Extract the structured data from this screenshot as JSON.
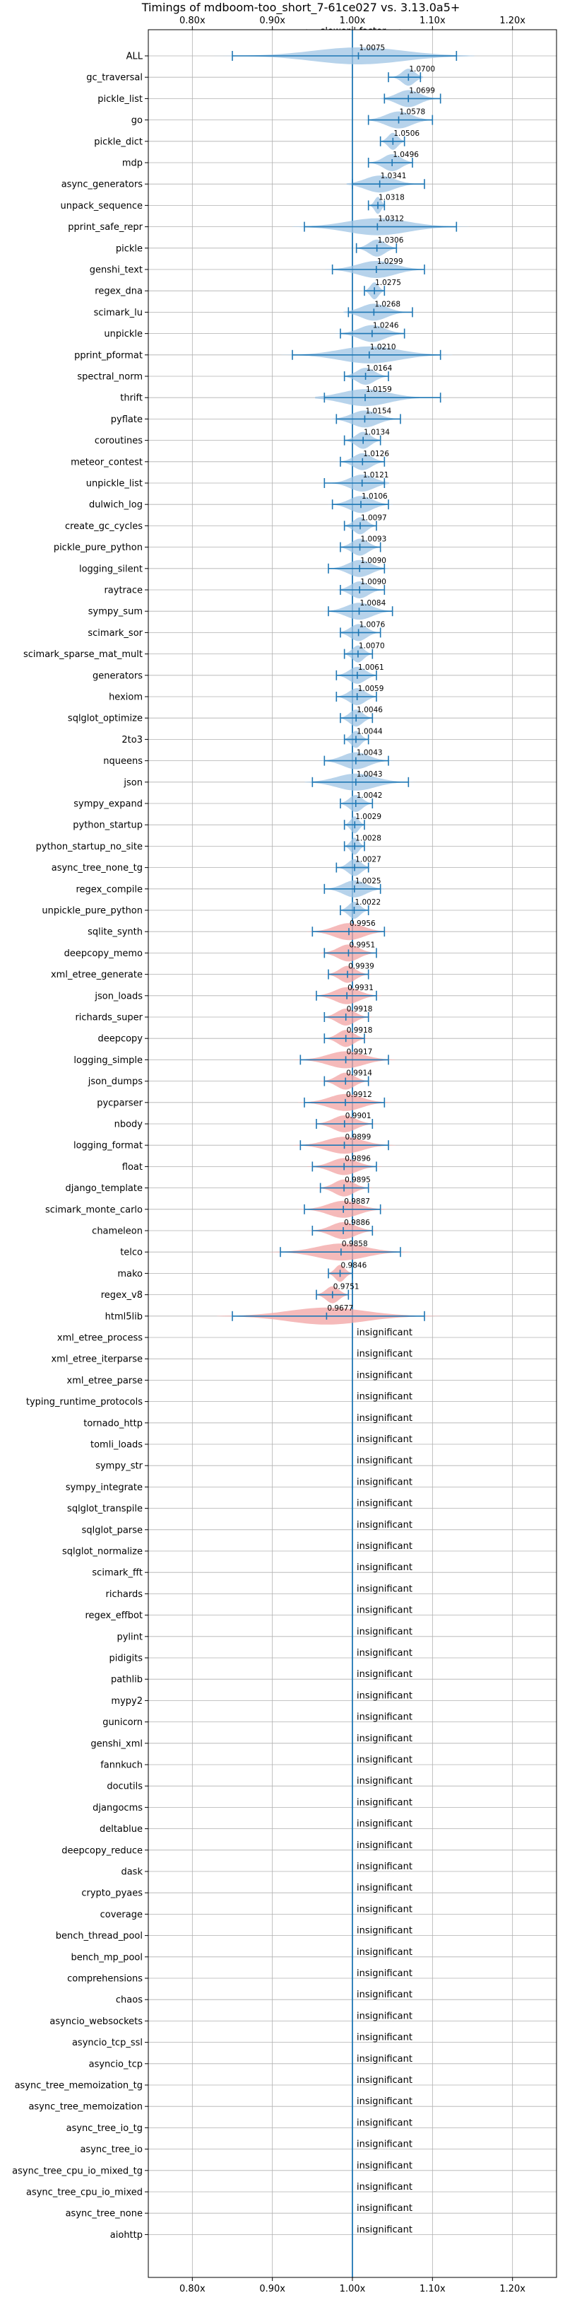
{
  "chart_data": {
    "type": "violin",
    "title": "Timings of mdboom-too_short_7-61ce027 vs. 3.13.0a5+",
    "direction_label": "⟵ slower | faster ⟶",
    "xlim": [
      0.745,
      1.255
    ],
    "x_ticks": [
      {
        "value": 0.8,
        "label": "0.80x"
      },
      {
        "value": 0.9,
        "label": "0.90x"
      },
      {
        "value": 1.0,
        "label": "1.00x"
      },
      {
        "value": 1.1,
        "label": "1.10x"
      },
      {
        "value": 1.2,
        "label": "1.20x"
      }
    ],
    "grid": true,
    "insignificant_label": "insignificant",
    "colors": {
      "faster": "#9fc4e4",
      "slower": "#f2a3a3",
      "errorbar": "#1f77b4",
      "reference_line": "#1f77b4",
      "grid": "#b0b0b0"
    },
    "benchmarks": [
      {
        "name": "ALL",
        "mean": 1.0075,
        "low": 0.85,
        "high": 1.13,
        "label": "1.0075"
      },
      {
        "name": "gc_traversal",
        "mean": 1.07,
        "low": 1.045,
        "high": 1.085,
        "label": "1.0700"
      },
      {
        "name": "pickle_list",
        "mean": 1.0699,
        "low": 1.04,
        "high": 1.11,
        "label": "1.0699"
      },
      {
        "name": "go",
        "mean": 1.0578,
        "low": 1.02,
        "high": 1.1,
        "label": "1.0578"
      },
      {
        "name": "pickle_dict",
        "mean": 1.0506,
        "low": 1.035,
        "high": 1.065,
        "label": "1.0506"
      },
      {
        "name": "mdp",
        "mean": 1.0496,
        "low": 1.02,
        "high": 1.075,
        "label": "1.0496"
      },
      {
        "name": "async_generators",
        "mean": 1.0341,
        "low": 1.0,
        "high": 1.09,
        "label": "1.0341"
      },
      {
        "name": "unpack_sequence",
        "mean": 1.0318,
        "low": 1.02,
        "high": 1.04,
        "label": "1.0318"
      },
      {
        "name": "pprint_safe_repr",
        "mean": 1.0312,
        "low": 0.94,
        "high": 1.13,
        "label": "1.0312"
      },
      {
        "name": "pickle",
        "mean": 1.0306,
        "low": 1.005,
        "high": 1.055,
        "label": "1.0306"
      },
      {
        "name": "genshi_text",
        "mean": 1.0299,
        "low": 0.975,
        "high": 1.09,
        "label": "1.0299"
      },
      {
        "name": "regex_dna",
        "mean": 1.0275,
        "low": 1.015,
        "high": 1.04,
        "label": "1.0275"
      },
      {
        "name": "scimark_lu",
        "mean": 1.0268,
        "low": 0.995,
        "high": 1.075,
        "label": "1.0268"
      },
      {
        "name": "unpickle",
        "mean": 1.0246,
        "low": 0.985,
        "high": 1.065,
        "label": "1.0246"
      },
      {
        "name": "pprint_pformat",
        "mean": 1.021,
        "low": 0.925,
        "high": 1.11,
        "label": "1.0210"
      },
      {
        "name": "spectral_norm",
        "mean": 1.0164,
        "low": 0.99,
        "high": 1.045,
        "label": "1.0164"
      },
      {
        "name": "thrift",
        "mean": 1.0159,
        "low": 0.965,
        "high": 1.11,
        "label": "1.0159"
      },
      {
        "name": "pyflate",
        "mean": 1.0154,
        "low": 0.98,
        "high": 1.06,
        "label": "1.0154"
      },
      {
        "name": "coroutines",
        "mean": 1.0134,
        "low": 0.99,
        "high": 1.035,
        "label": "1.0134"
      },
      {
        "name": "meteor_contest",
        "mean": 1.0126,
        "low": 0.985,
        "high": 1.04,
        "label": "1.0126"
      },
      {
        "name": "unpickle_list",
        "mean": 1.0121,
        "low": 0.965,
        "high": 1.04,
        "label": "1.0121"
      },
      {
        "name": "dulwich_log",
        "mean": 1.0106,
        "low": 0.975,
        "high": 1.045,
        "label": "1.0106"
      },
      {
        "name": "create_gc_cycles",
        "mean": 1.0097,
        "low": 0.99,
        "high": 1.03,
        "label": "1.0097"
      },
      {
        "name": "pickle_pure_python",
        "mean": 1.0093,
        "low": 0.985,
        "high": 1.035,
        "label": "1.0093"
      },
      {
        "name": "logging_silent",
        "mean": 1.009,
        "low": 0.97,
        "high": 1.04,
        "label": "1.0090"
      },
      {
        "name": "raytrace",
        "mean": 1.009,
        "low": 0.985,
        "high": 1.04,
        "label": "1.0090"
      },
      {
        "name": "sympy_sum",
        "mean": 1.0084,
        "low": 0.97,
        "high": 1.05,
        "label": "1.0084"
      },
      {
        "name": "scimark_sor",
        "mean": 1.0076,
        "low": 0.985,
        "high": 1.035,
        "label": "1.0076"
      },
      {
        "name": "scimark_sparse_mat_mult",
        "mean": 1.007,
        "low": 0.99,
        "high": 1.025,
        "label": "1.0070"
      },
      {
        "name": "generators",
        "mean": 1.0061,
        "low": 0.98,
        "high": 1.03,
        "label": "1.0061"
      },
      {
        "name": "hexiom",
        "mean": 1.0059,
        "low": 0.98,
        "high": 1.03,
        "label": "1.0059"
      },
      {
        "name": "sqlglot_optimize",
        "mean": 1.0046,
        "low": 0.985,
        "high": 1.025,
        "label": "1.0046"
      },
      {
        "name": "2to3",
        "mean": 1.0044,
        "low": 0.99,
        "high": 1.02,
        "label": "1.0044"
      },
      {
        "name": "nqueens",
        "mean": 1.0043,
        "low": 0.965,
        "high": 1.045,
        "label": "1.0043"
      },
      {
        "name": "json",
        "mean": 1.0043,
        "low": 0.95,
        "high": 1.07,
        "label": "1.0043"
      },
      {
        "name": "sympy_expand",
        "mean": 1.0042,
        "low": 0.985,
        "high": 1.025,
        "label": "1.0042"
      },
      {
        "name": "python_startup",
        "mean": 1.0029,
        "low": 0.99,
        "high": 1.015,
        "label": "1.0029"
      },
      {
        "name": "python_startup_no_site",
        "mean": 1.0028,
        "low": 0.99,
        "high": 1.015,
        "label": "1.0028"
      },
      {
        "name": "async_tree_none_tg",
        "mean": 1.0027,
        "low": 0.98,
        "high": 1.02,
        "label": "1.0027"
      },
      {
        "name": "regex_compile",
        "mean": 1.0025,
        "low": 0.965,
        "high": 1.035,
        "label": "1.0025"
      },
      {
        "name": "unpickle_pure_python",
        "mean": 1.0022,
        "low": 0.985,
        "high": 1.02,
        "label": "1.0022"
      },
      {
        "name": "sqlite_synth",
        "mean": 0.9956,
        "low": 0.95,
        "high": 1.04,
        "label": "0.9956"
      },
      {
        "name": "deepcopy_memo",
        "mean": 0.9951,
        "low": 0.965,
        "high": 1.03,
        "label": "0.9951"
      },
      {
        "name": "xml_etree_generate",
        "mean": 0.9939,
        "low": 0.97,
        "high": 1.02,
        "label": "0.9939"
      },
      {
        "name": "json_loads",
        "mean": 0.9931,
        "low": 0.955,
        "high": 1.03,
        "label": "0.9931"
      },
      {
        "name": "richards_super",
        "mean": 0.9918,
        "low": 0.965,
        "high": 1.02,
        "label": "0.9918"
      },
      {
        "name": "deepcopy",
        "mean": 0.9918,
        "low": 0.965,
        "high": 1.015,
        "label": "0.9918"
      },
      {
        "name": "logging_simple",
        "mean": 0.9917,
        "low": 0.935,
        "high": 1.045,
        "label": "0.9917"
      },
      {
        "name": "json_dumps",
        "mean": 0.9914,
        "low": 0.965,
        "high": 1.02,
        "label": "0.9914"
      },
      {
        "name": "pycparser",
        "mean": 0.9912,
        "low": 0.94,
        "high": 1.04,
        "label": "0.9912"
      },
      {
        "name": "nbody",
        "mean": 0.9901,
        "low": 0.955,
        "high": 1.025,
        "label": "0.9901"
      },
      {
        "name": "logging_format",
        "mean": 0.9899,
        "low": 0.935,
        "high": 1.045,
        "label": "0.9899"
      },
      {
        "name": "float",
        "mean": 0.9896,
        "low": 0.95,
        "high": 1.03,
        "label": "0.9896"
      },
      {
        "name": "django_template",
        "mean": 0.9895,
        "low": 0.96,
        "high": 1.02,
        "label": "0.9895"
      },
      {
        "name": "scimark_monte_carlo",
        "mean": 0.9887,
        "low": 0.94,
        "high": 1.035,
        "label": "0.9887"
      },
      {
        "name": "chameleon",
        "mean": 0.9886,
        "low": 0.95,
        "high": 1.025,
        "label": "0.9886"
      },
      {
        "name": "telco",
        "mean": 0.9858,
        "low": 0.91,
        "high": 1.06,
        "label": "0.9858"
      },
      {
        "name": "mako",
        "mean": 0.9846,
        "low": 0.97,
        "high": 1.0,
        "label": "0.9846"
      },
      {
        "name": "regex_v8",
        "mean": 0.9751,
        "low": 0.955,
        "high": 0.995,
        "label": "0.9751"
      },
      {
        "name": "html5lib",
        "mean": 0.9677,
        "low": 0.85,
        "high": 1.09,
        "label": "0.9677"
      }
    ],
    "insignificant": [
      "xml_etree_process",
      "xml_etree_iterparse",
      "xml_etree_parse",
      "typing_runtime_protocols",
      "tornado_http",
      "tomli_loads",
      "sympy_str",
      "sympy_integrate",
      "sqlglot_transpile",
      "sqlglot_parse",
      "sqlglot_normalize",
      "scimark_fft",
      "richards",
      "regex_effbot",
      "pylint",
      "pidigits",
      "pathlib",
      "mypy2",
      "gunicorn",
      "genshi_xml",
      "fannkuch",
      "docutils",
      "djangocms",
      "deltablue",
      "deepcopy_reduce",
      "dask",
      "crypto_pyaes",
      "coverage",
      "bench_thread_pool",
      "bench_mp_pool",
      "comprehensions",
      "chaos",
      "asyncio_websockets",
      "asyncio_tcp_ssl",
      "asyncio_tcp",
      "async_tree_memoization_tg",
      "async_tree_memoization",
      "async_tree_io_tg",
      "async_tree_io",
      "async_tree_cpu_io_mixed_tg",
      "async_tree_cpu_io_mixed",
      "async_tree_none",
      "aiohttp"
    ]
  }
}
